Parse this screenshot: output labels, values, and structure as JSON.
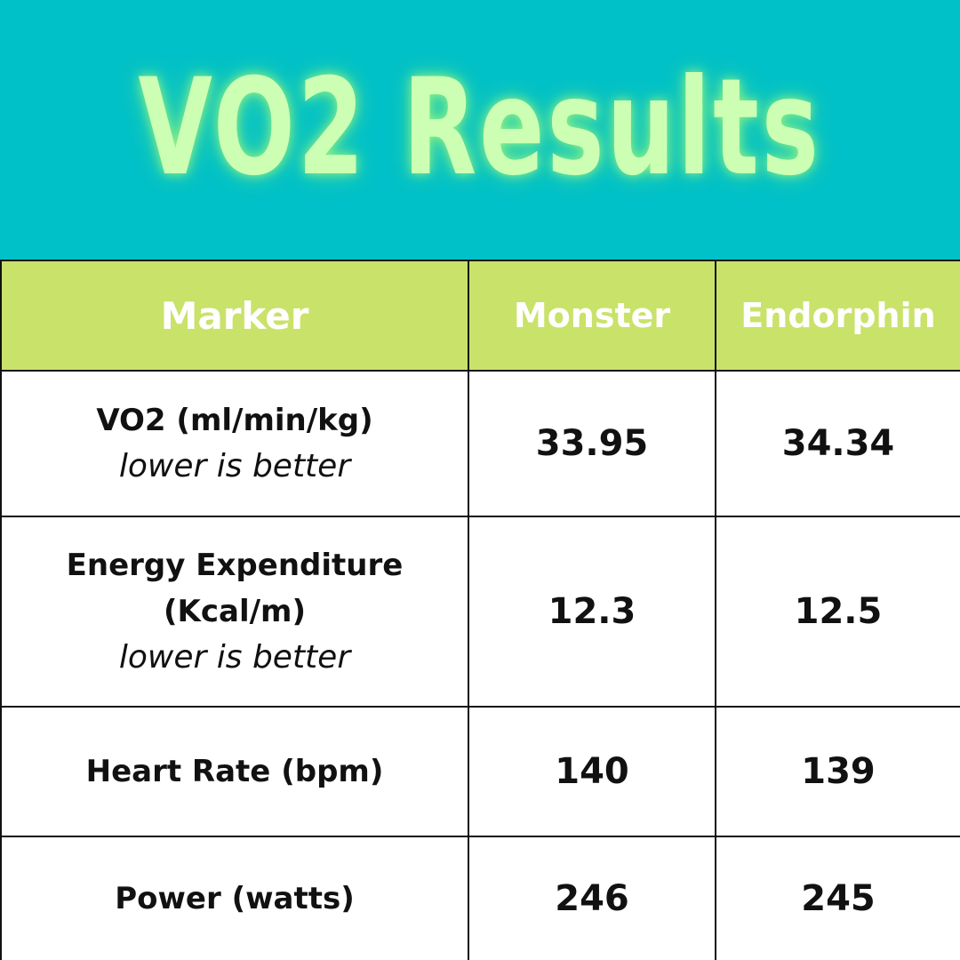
{
  "title": "VO2 Results",
  "colors": {
    "background": "#00c1c8",
    "title_text": "#ccffb3",
    "header_background": "#c9e26a",
    "header_text": "#ffffff",
    "cell_background": "#ffffff",
    "border": "#111111"
  },
  "table": {
    "headers": [
      "Marker",
      "Monster",
      "Endorphin"
    ],
    "rows": [
      {
        "marker": "VO2 (ml/min/kg)",
        "marker_line2": "",
        "note": "lower is better",
        "monster": "33.95",
        "endorphin": "34.34"
      },
      {
        "marker": "Energy Expenditure",
        "marker_line2": "(Kcal/m)",
        "note": "lower is better",
        "monster": "12.3",
        "endorphin": "12.5"
      },
      {
        "marker": "Heart Rate (bpm)",
        "marker_line2": "",
        "note": "",
        "monster": "140",
        "endorphin": "139"
      },
      {
        "marker": "Power (watts)",
        "marker_line2": "",
        "note": "",
        "monster": "246",
        "endorphin": "245"
      }
    ]
  }
}
